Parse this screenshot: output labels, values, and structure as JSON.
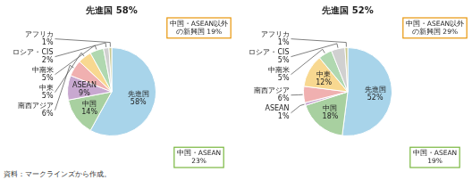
{
  "chart_data": [
    {
      "type": "pie",
      "title": "先進国 58%",
      "categories": [
        "先進国",
        "中国",
        "ASEAN",
        "南西アジア",
        "中東",
        "中南米",
        "ロシア・CIS",
        "アフリカ"
      ],
      "values": [
        58,
        14,
        9,
        6,
        5,
        5,
        2,
        1
      ],
      "value_labels": [
        "58%",
        "14%",
        "9%",
        "6%",
        "5%",
        "5%",
        "2%",
        "1%"
      ],
      "colors": [
        "#a8d4ea",
        "#a8d0a0",
        "#c8a8d0",
        "#f0b0b0",
        "#f8d890",
        "#b0d8b0",
        "#d0d0d0",
        "#c8c890"
      ],
      "data_labels": true,
      "annotations": [
        {
          "text": "中国・ASEAN以外\nの新興国 19%",
          "color": "#e8960a"
        },
        {
          "text": "中国・ASEAN\n23%",
          "color": "#7ab840"
        }
      ]
    },
    {
      "type": "pie",
      "title": "先進国 52%",
      "categories": [
        "先進国",
        "中国",
        "ASEAN",
        "南西アジア",
        "中東",
        "中南米",
        "ロシア・CIS",
        "アフリカ"
      ],
      "values": [
        52,
        18,
        1,
        6,
        12,
        5,
        5,
        1
      ],
      "value_labels": [
        "52%",
        "18%",
        "1%",
        "6%",
        "12%",
        "5%",
        "5%",
        "1%"
      ],
      "colors": [
        "#a8d4ea",
        "#a8d0a0",
        "#c8a8d0",
        "#f0b0b0",
        "#f8d890",
        "#b0d8b0",
        "#d0d0d0",
        "#c8c890"
      ],
      "data_labels": true,
      "annotations": [
        {
          "text": "中国・ASEAN以外\nの新興国 29%",
          "color": "#e8960a"
        },
        {
          "text": "中国・ASEAN\n19%",
          "color": "#7ab840"
        }
      ]
    }
  ],
  "source": "資料：マークラインズから作成。"
}
